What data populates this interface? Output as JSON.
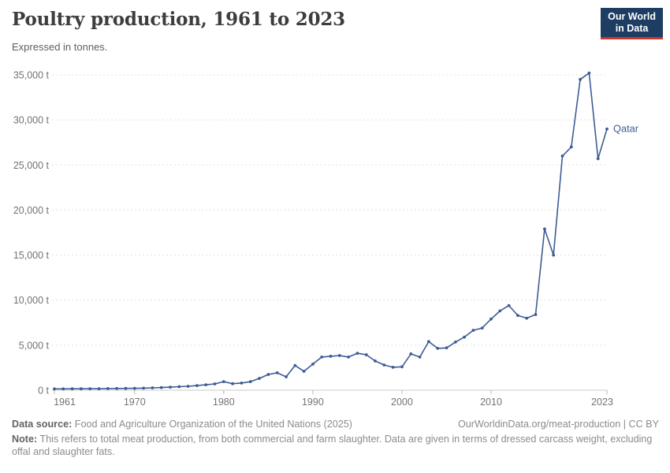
{
  "header": {
    "title": "Poultry production, 1961 to 2023",
    "subtitle": "Expressed in tonnes."
  },
  "logo": {
    "line1": "Our World",
    "line2": "in Data",
    "bg_color": "#1d3d63",
    "accent_color": "#d0352b"
  },
  "chart_data": {
    "type": "line",
    "title": "Poultry production, 1961 to 2023",
    "unit": "tonnes",
    "entity": "Qatar",
    "line_color": "#3d5c96",
    "grid": "horizontal dashed gridlines every 5,000 t",
    "legend_position": "end-of-line label",
    "xlim": [
      1961,
      2023
    ],
    "ylim": [
      0,
      35000
    ],
    "x": [
      1961,
      1962,
      1963,
      1964,
      1965,
      1966,
      1967,
      1968,
      1969,
      1970,
      1971,
      1972,
      1973,
      1974,
      1975,
      1976,
      1977,
      1978,
      1979,
      1980,
      1981,
      1982,
      1983,
      1984,
      1985,
      1986,
      1987,
      1988,
      1989,
      1990,
      1991,
      1992,
      1993,
      1994,
      1995,
      1996,
      1997,
      1998,
      1999,
      2000,
      2001,
      2002,
      2003,
      2004,
      2005,
      2006,
      2007,
      2008,
      2009,
      2010,
      2011,
      2012,
      2013,
      2014,
      2015,
      2016,
      2017,
      2018,
      2019,
      2020,
      2021,
      2022,
      2023
    ],
    "values": [
      150,
      150,
      160,
      160,
      170,
      170,
      180,
      190,
      200,
      210,
      230,
      260,
      300,
      340,
      390,
      440,
      520,
      600,
      700,
      950,
      730,
      800,
      950,
      1310,
      1750,
      1930,
      1490,
      2750,
      2100,
      2900,
      3680,
      3770,
      3850,
      3680,
      4100,
      3940,
      3250,
      2800,
      2550,
      2600,
      4030,
      3680,
      5400,
      4650,
      4700,
      5350,
      5900,
      6650,
      6900,
      7900,
      8800,
      9400,
      8300,
      8000,
      8400,
      17900,
      15000,
      26000,
      27000,
      34500,
      35200,
      25700,
      29000
    ],
    "x_ticks": {
      "values": [
        1961,
        1970,
        1980,
        1990,
        2000,
        2010,
        2023
      ],
      "labels": [
        "1961",
        "1970",
        "1980",
        "1990",
        "2000",
        "2010",
        "2023"
      ]
    },
    "y_ticks": {
      "values": [
        0,
        5000,
        10000,
        15000,
        20000,
        25000,
        30000,
        35000
      ],
      "labels": [
        "0 t",
        "5,000 t",
        "10,000 t",
        "15,000 t",
        "20,000 t",
        "25,000 t",
        "30,000 t",
        "35,000 t"
      ]
    }
  },
  "footer": {
    "source_label": "Data source:",
    "source_text": " Food and Agriculture Organization of the United Nations (2025)",
    "link": "OurWorldinData.org/meat-production | CC BY",
    "note_label": "Note:",
    "note_text": " This refers to total meat production, from both commercial and farm slaughter. Data are given in terms of dressed carcass weight, excluding offal and slaughter fats."
  }
}
